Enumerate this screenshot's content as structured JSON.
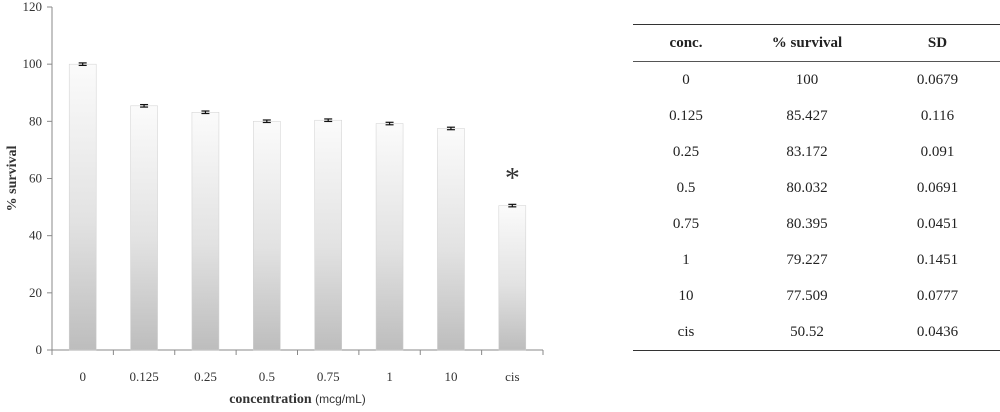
{
  "chart_data": {
    "type": "bar",
    "categories": [
      "0",
      "0.125",
      "0.25",
      "0.5",
      "0.75",
      "1",
      "10",
      "cis"
    ],
    "values": [
      100,
      85.427,
      83.172,
      80.032,
      80.395,
      79.227,
      77.509,
      50.52
    ],
    "errors": [
      0.0679,
      0.116,
      0.091,
      0.0691,
      0.0451,
      0.1451,
      0.0777,
      0.0436
    ],
    "ylabel": "% survival",
    "xlabel": "concentration",
    "xlabel_unit": "(mcg/mL)",
    "ylim": [
      0,
      120
    ],
    "yticks": [
      0,
      20,
      40,
      60,
      80,
      100,
      120
    ],
    "grid": false,
    "legend": "none",
    "annotations": [
      {
        "category": "cis",
        "text": "*"
      }
    ],
    "colors": {
      "bar_light": "#fbfbfb",
      "bar_dark": "#bdbdbd",
      "axis": "#888888"
    }
  },
  "table": {
    "headers": [
      "conc.",
      "% survival",
      "SD"
    ],
    "rows": [
      [
        "0",
        "100",
        "0.0679"
      ],
      [
        "0.125",
        "85.427",
        "0.116"
      ],
      [
        "0.25",
        "83.172",
        "0.091"
      ],
      [
        "0.5",
        "80.032",
        "0.0691"
      ],
      [
        "0.75",
        "80.395",
        "0.0451"
      ],
      [
        "1",
        "79.227",
        "0.1451"
      ],
      [
        "10",
        "77.509",
        "0.0777"
      ],
      [
        "cis",
        "50.52",
        "0.0436"
      ]
    ]
  }
}
